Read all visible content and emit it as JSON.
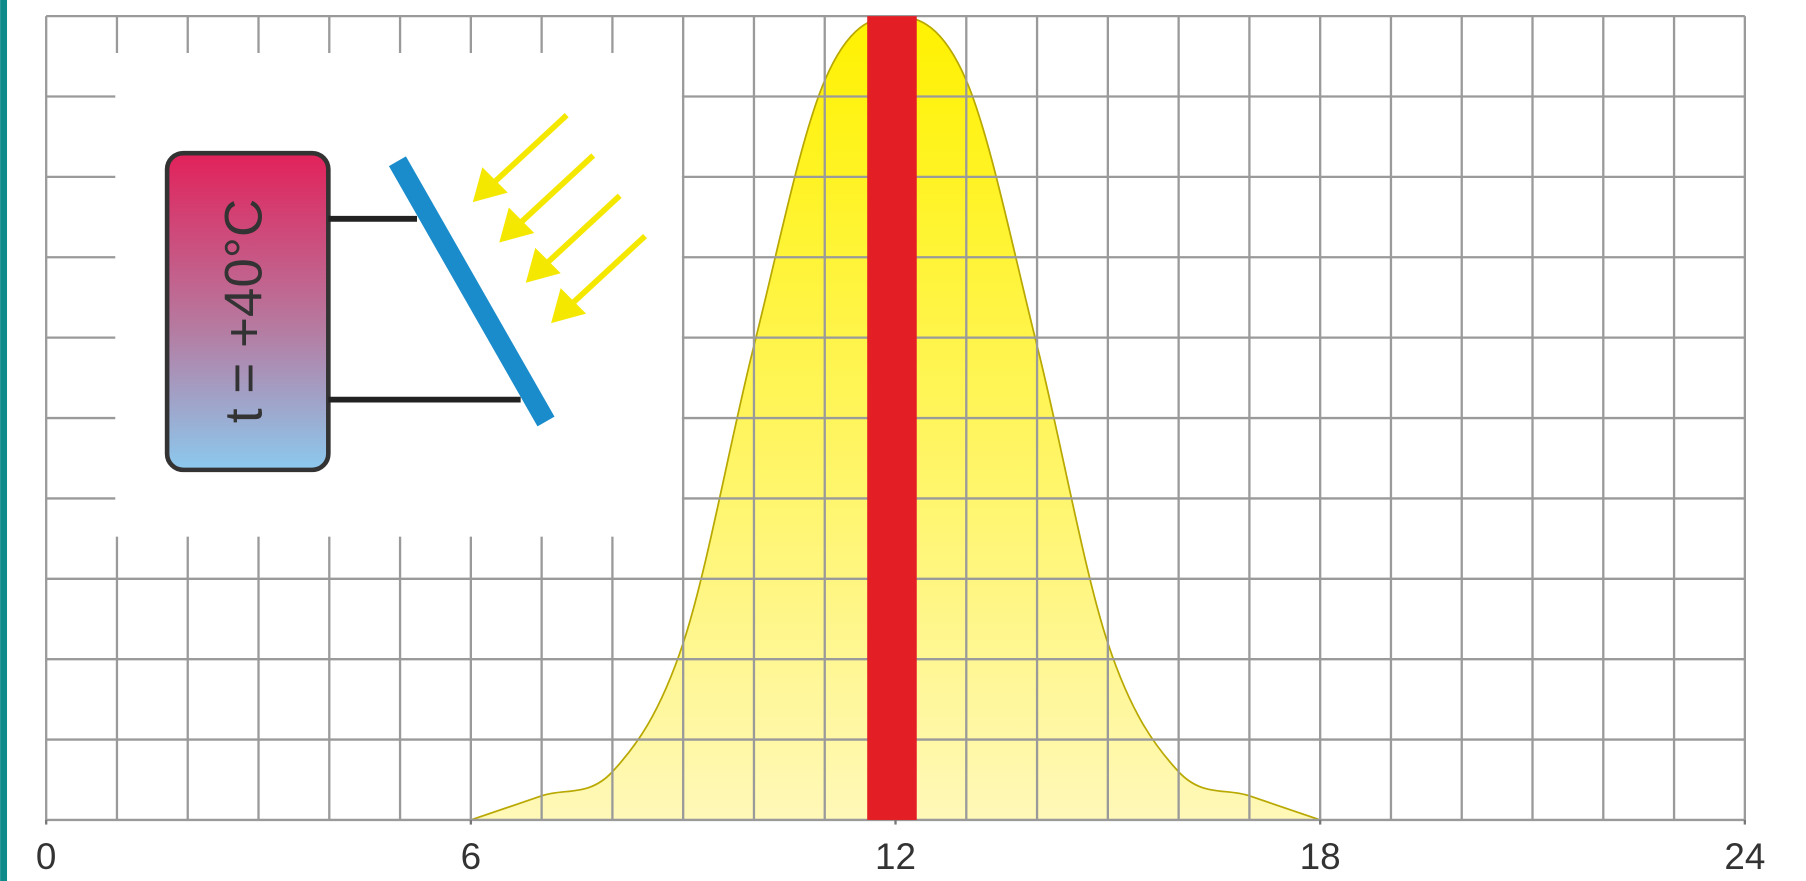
{
  "chart_data": {
    "type": "area",
    "x": [
      6,
      7,
      8,
      9,
      10,
      11,
      12,
      13,
      14,
      15,
      16,
      17,
      18
    ],
    "values": [
      0,
      0.3,
      0.6,
      2.2,
      5.9,
      9.2,
      10,
      9.2,
      5.9,
      2.2,
      0.6,
      0.3,
      0
    ],
    "color": "#fff200",
    "xlim": [
      0,
      24
    ],
    "xticks": [
      0,
      6,
      12,
      18,
      24
    ],
    "ylim": [
      0,
      10
    ],
    "peak_band": [
      11.6,
      12.3
    ],
    "peak_band_color": "#e31e24",
    "grid": true,
    "inset_label": "t = +40°C"
  }
}
